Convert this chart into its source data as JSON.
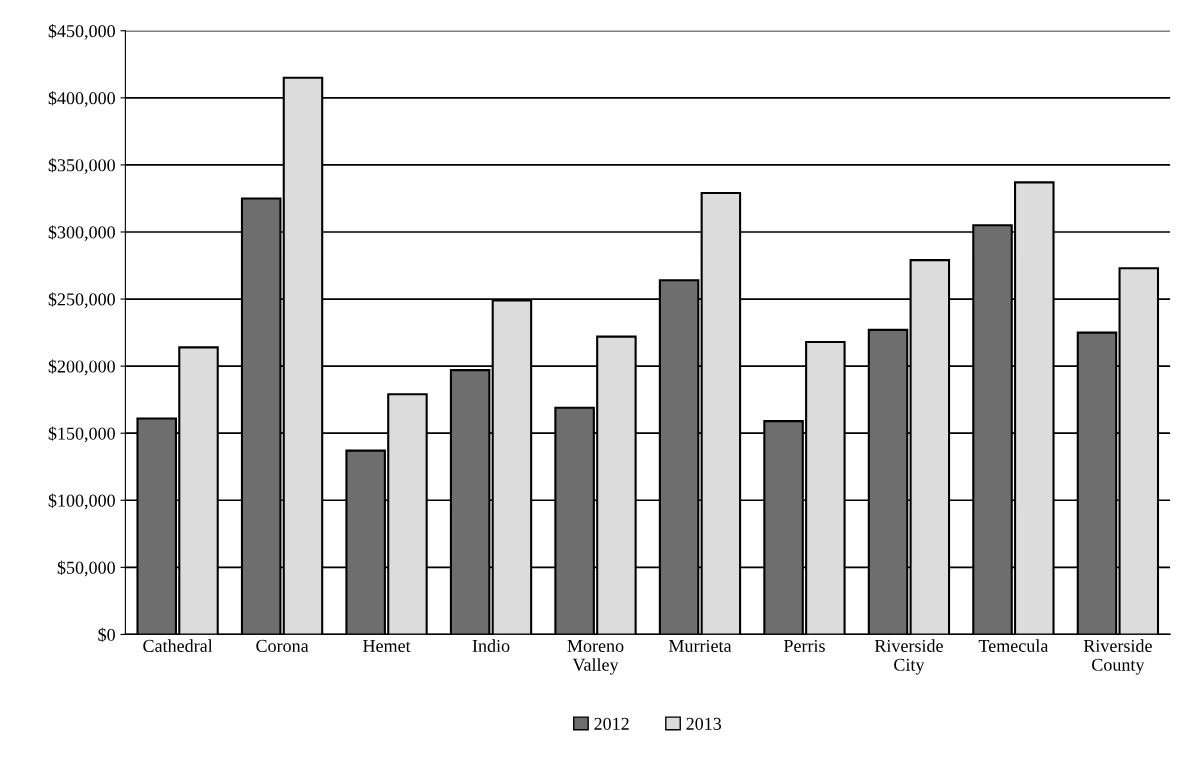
{
  "chart_data": {
    "type": "bar",
    "categories": [
      "Cathedral",
      "Corona",
      "Hemet",
      "Indio",
      "Moreno\nValley",
      "Murrieta",
      "Perris",
      "Riverside\nCity",
      "Temecula",
      "Riverside\nCounty"
    ],
    "series": [
      {
        "name": "2012",
        "color": "#6e6e6e",
        "values": [
          161000,
          325000,
          137000,
          197000,
          169000,
          264000,
          159000,
          227000,
          305000,
          225000
        ]
      },
      {
        "name": "2013",
        "color": "#dcdcdc",
        "values": [
          214000,
          415000,
          179000,
          249000,
          222000,
          329000,
          218000,
          279000,
          337000,
          273000
        ]
      }
    ],
    "ylim": [
      0,
      450000
    ],
    "yticks": [
      {
        "value": 0,
        "label": "$0"
      },
      {
        "value": 50000,
        "label": "$50,000"
      },
      {
        "value": 100000,
        "label": "$100,000"
      },
      {
        "value": 150000,
        "label": "$150,000"
      },
      {
        "value": 200000,
        "label": "$200,000"
      },
      {
        "value": 250000,
        "label": "$250,000"
      },
      {
        "value": 300000,
        "label": "$300,000"
      },
      {
        "value": 350000,
        "label": "$350,000"
      },
      {
        "value": 400000,
        "label": "$400,000"
      },
      {
        "value": 450000,
        "label": "$450,000"
      }
    ],
    "grid": "y",
    "legend": "bottom"
  }
}
